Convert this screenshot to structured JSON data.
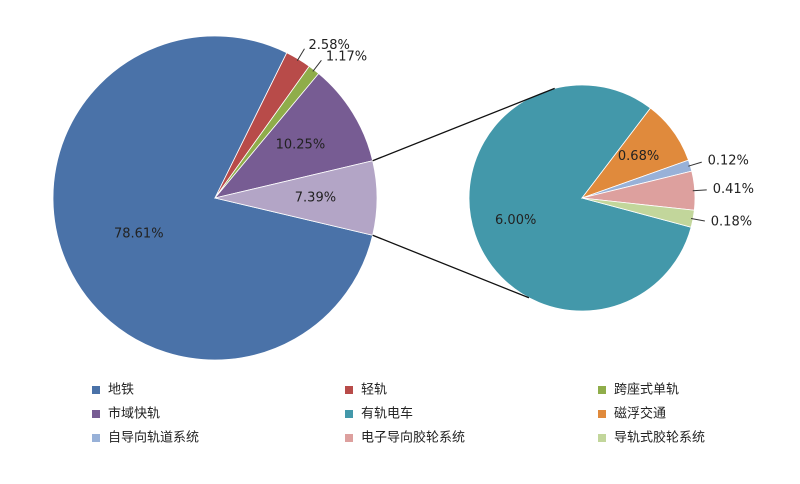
{
  "chart_data": [
    {
      "type": "pie",
      "categories": [
        "地铁",
        "轻轨",
        "跨座式单轨",
        "市域快轨",
        null
      ],
      "values": [
        78.61,
        2.58,
        1.17,
        10.25,
        7.39
      ],
      "value_labels": [
        "78.61%",
        "2.58%",
        "1.17%",
        "10.25%",
        "7.39%"
      ],
      "colors": [
        "#4a72a8",
        "#b84b49",
        "#8fad4a",
        "#775c93",
        "#b3a5c6"
      ]
    },
    {
      "type": "pie",
      "categories": [
        "有轨电车",
        "磁浮交通",
        "自导向轨道系统",
        "电子导向胶轮系统",
        "导轨式胶轮系统"
      ],
      "values": [
        6.0,
        0.68,
        0.12,
        0.41,
        0.18
      ],
      "value_labels": [
        "6.00%",
        "0.68%",
        "0.12%",
        "0.41%",
        "0.18%"
      ],
      "colors": [
        "#4398aa",
        "#e08a3c",
        "#98b1d8",
        "#dda09e",
        "#c2d69b"
      ]
    }
  ]
}
